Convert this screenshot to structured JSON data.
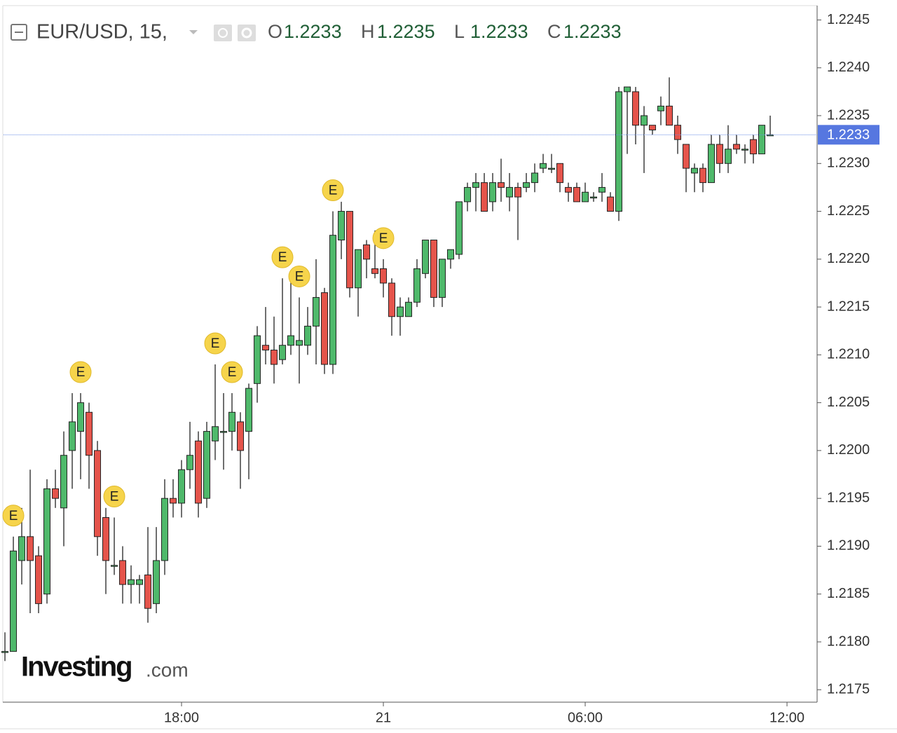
{
  "chart_data": {
    "type": "candlestick",
    "symbol": "EUR/USD, 15,",
    "header": [
      {
        "key": "O",
        "value": 1.2233
      },
      {
        "key": "H",
        "value": 1.2235
      },
      {
        "key": "L",
        "value": 1.2233
      },
      {
        "key": "C",
        "value": 1.2233
      }
    ],
    "watermark": [
      "Investing",
      ".com"
    ],
    "up_color": "#4fb96b",
    "down_color": "#e5544b",
    "open": [
      1.2179,
      1.2179,
      1.21885,
      1.2191,
      1.2189,
      1.2185,
      1.2196,
      1.2194,
      1.22,
      1.2202,
      1.2204,
      1.22,
      1.2193,
      1.2188,
      1.21885,
      1.2186,
      1.2186,
      1.2187,
      1.2184,
      1.21885,
      1.2195,
      1.21945,
      1.2198,
      1.2201,
      1.2195,
      1.2201,
      1.2202,
      1.2202,
      1.2203,
      1.2202,
      1.2207,
      1.2211,
      1.22105,
      1.22095,
      1.2211,
      1.2211,
      1.2211,
      1.2213,
      1.22165,
      1.2209,
      1.2222,
      1.2225,
      1.2217,
      1.22215,
      1.2219,
      1.2219,
      1.22175,
      1.2214,
      1.2214,
      1.22155,
      1.22185,
      1.2222,
      1.2216,
      1.222,
      1.22205,
      1.2226,
      1.22275,
      1.2228,
      1.2226,
      1.2228,
      1.22265,
      1.22275,
      1.22275,
      1.2228,
      1.22295,
      1.22295,
      1.223,
      1.22275,
      1.22275,
      1.2226,
      1.22265,
      1.2227,
      1.22265,
      1.2225,
      1.22375,
      1.22375,
      1.2234,
      1.2234,
      1.22355,
      1.2236,
      1.2234,
      1.2232,
      1.2229,
      1.22295,
      1.2228,
      1.2232,
      1.223,
      1.2232,
      1.22315,
      1.22325,
      1.2231,
      1.2233
    ],
    "high": [
      1.2181,
      1.2191,
      1.2194,
      1.2198,
      1.219,
      1.2197,
      1.2198,
      1.2202,
      1.2206,
      1.2206,
      1.2205,
      1.2201,
      1.2194,
      1.2193,
      1.219,
      1.2188,
      1.2187,
      1.2192,
      1.2192,
      1.2197,
      1.2197,
      1.2199,
      1.2203,
      1.2202,
      1.2203,
      1.2209,
      1.2206,
      1.2206,
      1.2204,
      1.2207,
      1.2213,
      1.2215,
      1.2214,
      1.2218,
      1.2218,
      1.2216,
      1.2215,
      1.222,
      1.2217,
      1.2225,
      1.2226,
      1.2225,
      1.2221,
      1.2222,
      1.2223,
      1.222,
      1.2218,
      1.2216,
      1.2216,
      1.222,
      1.2222,
      1.2222,
      1.222,
      1.2221,
      1.2226,
      1.2228,
      1.2229,
      1.2229,
      1.2229,
      1.22305,
      1.2229,
      1.2228,
      1.2229,
      1.223,
      1.2231,
      1.2231,
      1.223,
      1.2228,
      1.2228,
      1.2228,
      1.2227,
      1.2229,
      1.2227,
      1.2238,
      1.2238,
      1.2238,
      1.2236,
      1.2234,
      1.2237,
      1.2239,
      1.2235,
      1.2232,
      1.223,
      1.223,
      1.2233,
      1.2233,
      1.2234,
      1.2233,
      1.2232,
      1.2233,
      1.2234,
      1.2235
    ],
    "low": [
      1.2178,
      1.2179,
      1.2186,
      1.2183,
      1.2183,
      1.2184,
      1.2194,
      1.219,
      1.2196,
      1.2197,
      1.2196,
      1.2189,
      1.2185,
      1.2187,
      1.2184,
      1.2184,
      1.2184,
      1.2182,
      1.2183,
      1.2187,
      1.2193,
      1.2193,
      1.2196,
      1.2193,
      1.2194,
      1.2199,
      1.2198,
      1.22,
      1.2196,
      1.2197,
      1.2205,
      1.2209,
      1.2207,
      1.2209,
      1.221,
      1.2207,
      1.221,
      1.2209,
      1.2208,
      1.2208,
      1.222,
      1.2216,
      1.2214,
      1.2218,
      1.2218,
      1.2216,
      1.2212,
      1.2212,
      1.2214,
      1.2215,
      1.2218,
      1.2215,
      1.2215,
      1.2219,
      1.222,
      1.2225,
      1.2225,
      1.2225,
      1.2225,
      1.2226,
      1.2225,
      1.2222,
      1.2227,
      1.2227,
      1.2229,
      1.2229,
      1.2227,
      1.2226,
      1.2226,
      1.2226,
      1.2226,
      1.2226,
      1.2225,
      1.2224,
      1.2231,
      1.2232,
      1.2229,
      1.2233,
      1.2234,
      1.2234,
      1.2231,
      1.2227,
      1.2227,
      1.2227,
      1.2228,
      1.2229,
      1.2229,
      1.2231,
      1.223,
      1.223,
      1.2231,
      1.2233
    ],
    "close": [
      1.2179,
      1.21895,
      1.2191,
      1.21885,
      1.2184,
      1.2196,
      1.2195,
      1.21995,
      1.2203,
      1.2205,
      1.21995,
      1.2191,
      1.21885,
      1.2188,
      1.2186,
      1.21865,
      1.21865,
      1.21835,
      1.21885,
      1.2195,
      1.21945,
      1.2198,
      1.21995,
      1.21945,
      1.2202,
      1.22025,
      1.2202,
      1.2204,
      1.22,
      1.22065,
      1.2212,
      1.22105,
      1.2209,
      1.2211,
      1.2212,
      1.22115,
      1.2213,
      1.2216,
      1.2209,
      1.22225,
      1.2225,
      1.2217,
      1.2221,
      1.222,
      1.22185,
      1.22175,
      1.2214,
      1.2215,
      1.22155,
      1.2219,
      1.2222,
      1.2216,
      1.222,
      1.2221,
      1.2226,
      1.22275,
      1.2228,
      1.2225,
      1.2228,
      1.22275,
      1.22275,
      1.22265,
      1.2228,
      1.2229,
      1.223,
      1.22295,
      1.2228,
      1.2227,
      1.2226,
      1.2227,
      1.22265,
      1.22275,
      1.2225,
      1.22375,
      1.2238,
      1.2234,
      1.2235,
      1.22335,
      1.2236,
      1.2234,
      1.22325,
      1.22295,
      1.22295,
      1.2228,
      1.2232,
      1.223,
      1.22315,
      1.22315,
      1.22315,
      1.2231,
      1.2234,
      1.2233
    ],
    "events": [
      {
        "index": 1,
        "label": "E"
      },
      {
        "index": 9,
        "label": "E"
      },
      {
        "index": 13,
        "label": "E"
      },
      {
        "index": 25,
        "label": "E"
      },
      {
        "index": 27,
        "label": "E"
      },
      {
        "index": 33,
        "label": "E"
      },
      {
        "index": 35,
        "label": "E"
      },
      {
        "index": 39,
        "label": "E"
      },
      {
        "index": 45,
        "label": "E"
      }
    ],
    "last_price": 1.2233,
    "xlim": [
      -0.17,
      96.58
    ],
    "xticks": [
      {
        "value": 21,
        "label": "18:00"
      },
      {
        "value": 45,
        "label": "21"
      },
      {
        "value": 69,
        "label": "06:00"
      },
      {
        "value": 93,
        "label": "12:00"
      }
    ],
    "ylim": [
      1.21737,
      1.22465
    ],
    "yticks": [
      1.2245,
      {
        "value": 1.224,
        "label": "1.2240"
      },
      1.2235,
      {
        "value": 1.223,
        "label": "1.2230"
      },
      1.2225,
      {
        "value": 1.222,
        "label": "1.2220"
      },
      1.2215,
      {
        "value": 1.221,
        "label": "1.2210"
      },
      1.2205,
      {
        "value": 1.22,
        "label": "1.2200"
      },
      1.2195,
      {
        "value": 1.219,
        "label": "1.2190"
      },
      1.2185,
      {
        "value": 1.218,
        "label": "1.2180"
      },
      1.2175
    ]
  }
}
